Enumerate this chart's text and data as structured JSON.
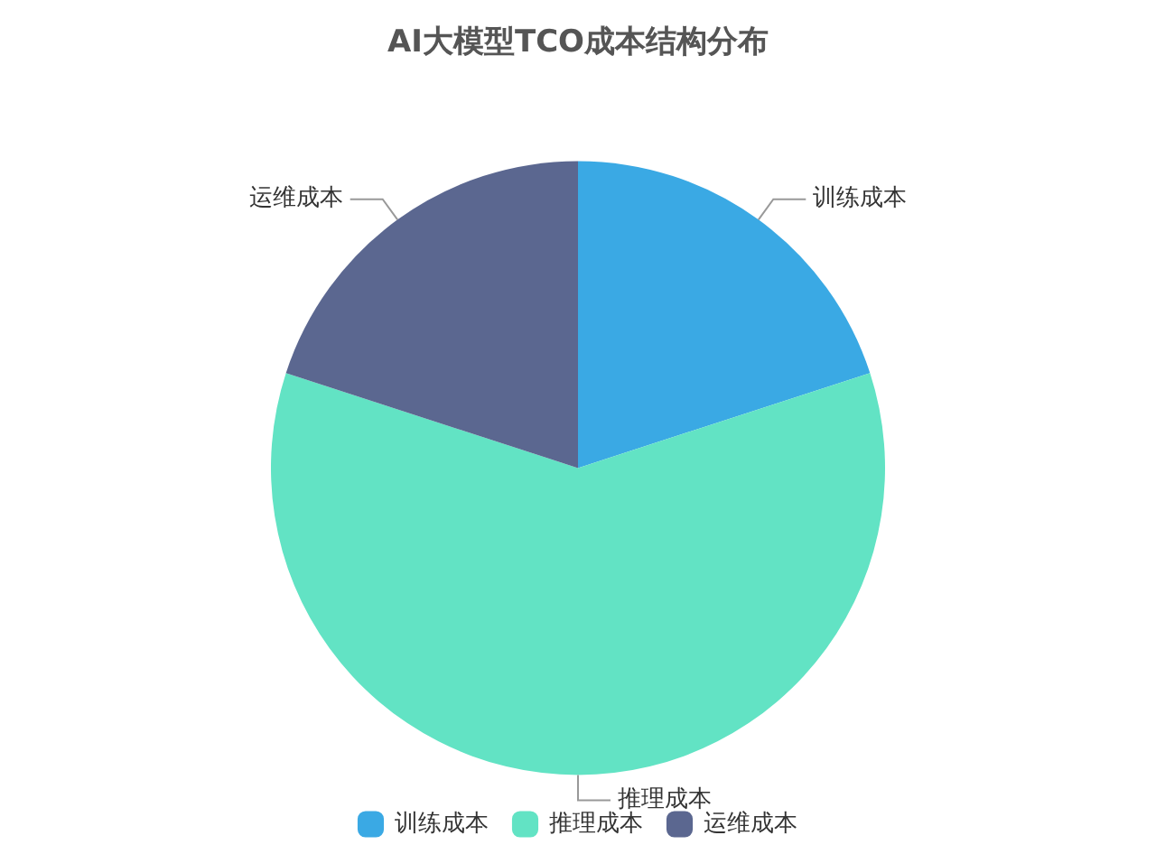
{
  "chart_data": {
    "type": "pie",
    "title": "AI大模型TCO成本结构分布",
    "categories": [
      "训练成本",
      "推理成本",
      "运维成本"
    ],
    "values": [
      20,
      60,
      20
    ],
    "colors": [
      "#3aa9e4",
      "#62e3c4",
      "#5b6790"
    ],
    "legend": "bottom"
  }
}
